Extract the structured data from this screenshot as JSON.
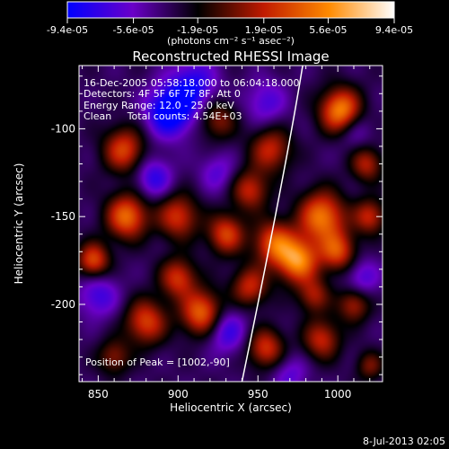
{
  "colorbar": {
    "ticks": [
      "-9.4e-05",
      "-5.6e-05",
      "-1.9e-05",
      "1.9e-05",
      "5.6e-05",
      "9.4e-05"
    ],
    "tick_values": [
      -9.4e-05,
      -5.6e-05,
      -1.9e-05,
      1.9e-05,
      5.6e-05,
      9.4e-05
    ],
    "range": [
      -9.4e-05,
      9.4e-05
    ],
    "unit_label": "(photons cm⁻² s⁻¹ asec⁻²)",
    "colors": [
      "#0000ff",
      "#6a00c8",
      "#000000",
      "#c01a00",
      "#ff8a00",
      "#ffffff"
    ]
  },
  "title": "Reconstructed RHESSI Image",
  "info": {
    "line1": "16-Dec-2005 05:58:18.000 to 06:04:18.000",
    "line2": "Detectors: 4F 5F 6F 7F 8F, Att 0",
    "line3": "Energy Range: 12.0 - 25.0 keV",
    "line4": "Clean     Total counts: 4.54E+03"
  },
  "peak_text": "Position of Peak = [1002,-90]",
  "axes": {
    "xlabel": "Heliocentric X (arcsec)",
    "ylabel": "Heliocentric Y (arcsec)",
    "xlim": [
      838,
      1028
    ],
    "ylim": [
      -244,
      -64
    ],
    "xticks": [
      850,
      900,
      950,
      1000
    ],
    "yticks": [
      -100,
      -150,
      -200
    ],
    "xtick_labels": [
      "850",
      "900",
      "950",
      "1000"
    ],
    "ytick_labels": [
      "-100",
      "-150",
      "-200"
    ]
  },
  "footer_date": "8-Jul-2013 02:05",
  "image": {
    "blobs": [
      {
        "x": 1002,
        "y": -90,
        "v": 1.0,
        "s": 9
      },
      {
        "x": 958,
        "y": -112,
        "v": 0.6,
        "s": 9
      },
      {
        "x": 925,
        "y": -95,
        "v": 0.45,
        "s": 8
      },
      {
        "x": 866,
        "y": -112,
        "v": 0.7,
        "s": 9
      },
      {
        "x": 868,
        "y": -150,
        "v": 0.85,
        "s": 9
      },
      {
        "x": 847,
        "y": -175,
        "v": 0.75,
        "s": 7
      },
      {
        "x": 900,
        "y": -150,
        "v": 0.65,
        "s": 9
      },
      {
        "x": 930,
        "y": -160,
        "v": 0.7,
        "s": 8
      },
      {
        "x": 960,
        "y": -165,
        "v": 0.75,
        "s": 9
      },
      {
        "x": 990,
        "y": -150,
        "v": 0.9,
        "s": 10
      },
      {
        "x": 975,
        "y": -175,
        "v": 0.95,
        "s": 9
      },
      {
        "x": 1000,
        "y": -170,
        "v": 0.7,
        "s": 8
      },
      {
        "x": 1020,
        "y": -150,
        "v": 0.6,
        "s": 7
      },
      {
        "x": 1018,
        "y": -120,
        "v": 0.55,
        "s": 7
      },
      {
        "x": 945,
        "y": -135,
        "v": 0.6,
        "s": 8
      },
      {
        "x": 900,
        "y": -185,
        "v": 0.65,
        "s": 8
      },
      {
        "x": 880,
        "y": -210,
        "v": 0.7,
        "s": 9
      },
      {
        "x": 915,
        "y": -205,
        "v": 0.85,
        "s": 9
      },
      {
        "x": 945,
        "y": -190,
        "v": 0.6,
        "s": 8
      },
      {
        "x": 955,
        "y": -225,
        "v": 0.65,
        "s": 8
      },
      {
        "x": 990,
        "y": -220,
        "v": 0.6,
        "s": 8
      },
      {
        "x": 1010,
        "y": -200,
        "v": 0.55,
        "s": 7
      },
      {
        "x": 860,
        "y": -230,
        "v": 0.45,
        "s": 7
      },
      {
        "x": 985,
        "y": -195,
        "v": 0.5,
        "s": 7
      },
      {
        "x": 1020,
        "y": -235,
        "v": 0.4,
        "s": 6
      },
      {
        "x": 895,
        "y": -90,
        "v": -0.8,
        "s": 10
      },
      {
        "x": 910,
        "y": -75,
        "v": -0.5,
        "s": 10
      },
      {
        "x": 885,
        "y": -128,
        "v": -0.45,
        "s": 8
      },
      {
        "x": 930,
        "y": -215,
        "v": -0.45,
        "s": 9
      },
      {
        "x": 1010,
        "y": -100,
        "v": -0.3,
        "s": 8
      },
      {
        "x": 955,
        "y": -85,
        "v": -0.35,
        "s": 9
      },
      {
        "x": 850,
        "y": -195,
        "v": -0.4,
        "s": 9
      },
      {
        "x": 1015,
        "y": -185,
        "v": -0.35,
        "s": 8
      },
      {
        "x": 970,
        "y": -240,
        "v": -0.3,
        "s": 8
      },
      {
        "x": 925,
        "y": -125,
        "v": -0.3,
        "s": 8
      }
    ],
    "base_level": -0.38,
    "limb_curve": [
      [
        978,
        -64
      ],
      [
        968,
        -120
      ],
      [
        950,
        -200
      ],
      [
        940,
        -244
      ]
    ]
  }
}
